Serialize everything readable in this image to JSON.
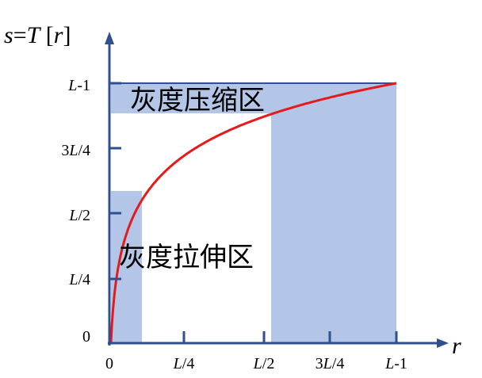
{
  "y_axis_title": {
    "s": "s",
    "eq": "=",
    "T": "T",
    "lb": " [",
    "r": "r",
    "rb": "]"
  },
  "x_axis_title": "r",
  "x_ticks": [
    {
      "base": "0",
      "suffix": ""
    },
    {
      "base": "L",
      "suffix": "/4"
    },
    {
      "base": "L",
      "suffix": "/2"
    },
    {
      "base": "3L",
      "suffix": "/4"
    },
    {
      "base": "L",
      "suffix": "-1"
    }
  ],
  "y_ticks": [
    {
      "base": "0",
      "suffix": ""
    },
    {
      "base": "L",
      "suffix": "/4"
    },
    {
      "base": "L",
      "suffix": "/2"
    },
    {
      "base": "3L",
      "suffix": "/4"
    },
    {
      "base": "L",
      "suffix": "-1"
    }
  ],
  "labels": {
    "compression": "灰度压缩区",
    "stretch": "灰度拉伸区"
  },
  "colors": {
    "axis": "#2f4f8f",
    "curve": "#e41a1c",
    "region": "#b4c6e7",
    "text": "#000000"
  }
}
